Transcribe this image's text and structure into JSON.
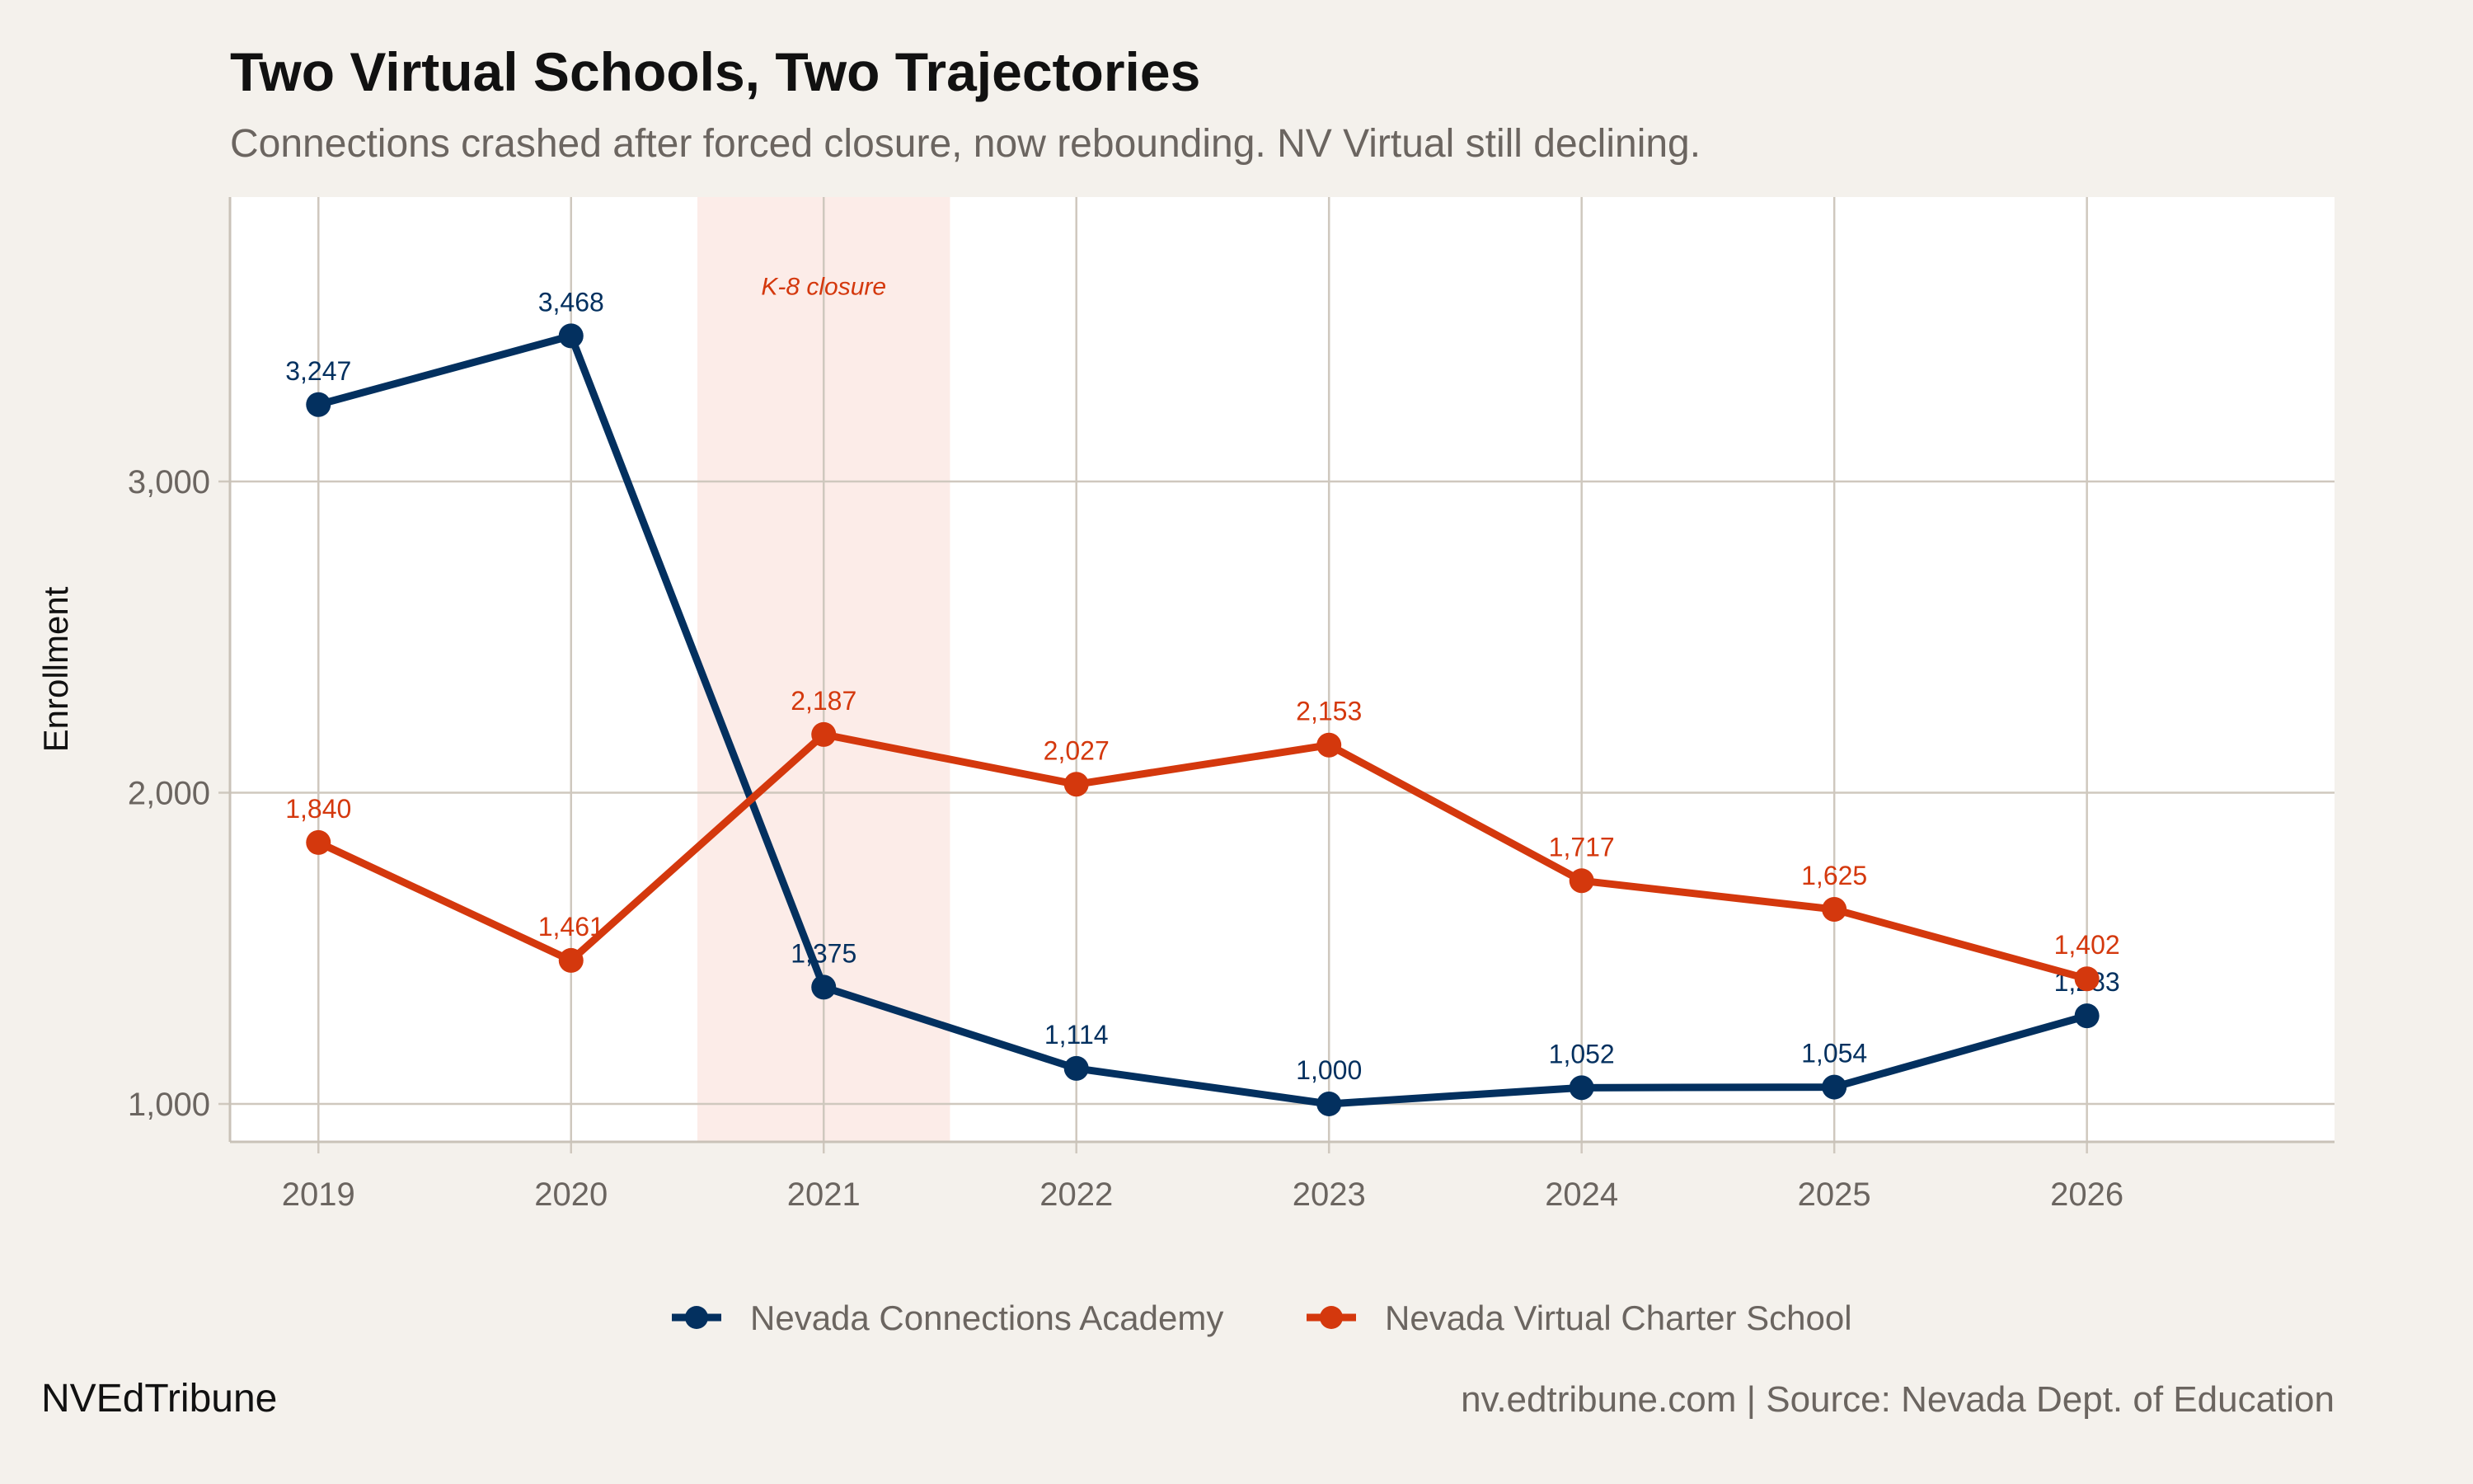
{
  "title": "Two Virtual Schools, Two Trajectories",
  "subtitle": "Connections crashed after forced closure, now rebounding. NV Virtual still declining.",
  "footer": {
    "brand": "NVEdTribune",
    "source": "nv.edtribune.com | Source: Nevada Dept. of Education"
  },
  "chart_data": {
    "type": "line",
    "title": "Two Virtual Schools, Two Trajectories",
    "subtitle": "Connections crashed after forced closure, now rebounding. NV Virtual still declining.",
    "xlabel": "",
    "ylabel": "Enrollment",
    "x": [
      2019,
      2020,
      2021,
      2022,
      2023,
      2024,
      2025,
      2026
    ],
    "x_tick_labels": [
      "2019",
      "2020",
      "2021",
      "2022",
      "2023",
      "2024",
      "2025",
      "2026"
    ],
    "y_ticks": [
      1000,
      2000,
      3000
    ],
    "y_tick_labels": [
      "1,000",
      "2,000",
      "3,000"
    ],
    "xlim": [
      2018.65,
      2026.98
    ],
    "ylim": [
      878,
      3914
    ],
    "grid": true,
    "legend_position": "bottom",
    "series": [
      {
        "name": "Nevada Connections Academy",
        "color": "#03305f",
        "values": [
          3247,
          3468,
          1375,
          1114,
          1000,
          1052,
          1054,
          1283
        ],
        "labels": [
          "3,247",
          "3,468",
          "1,375",
          "1,114",
          "1,000",
          "1,052",
          "1,054",
          "1,283"
        ]
      },
      {
        "name": "Nevada Virtual Charter School",
        "color": "#d4380d",
        "values": [
          1840,
          1461,
          2187,
          2027,
          2153,
          1717,
          1625,
          1402
        ],
        "labels": [
          "1,840",
          "1,461",
          "2,187",
          "2,027",
          "2,153",
          "1,717",
          "1,625",
          "1,402"
        ]
      }
    ],
    "annotations": [
      {
        "type": "shaded-region",
        "x_start": 2020.5,
        "x_end": 2021.5,
        "color": "#fcece8",
        "text": "K-8 closure",
        "text_color": "#d4380d"
      }
    ]
  }
}
